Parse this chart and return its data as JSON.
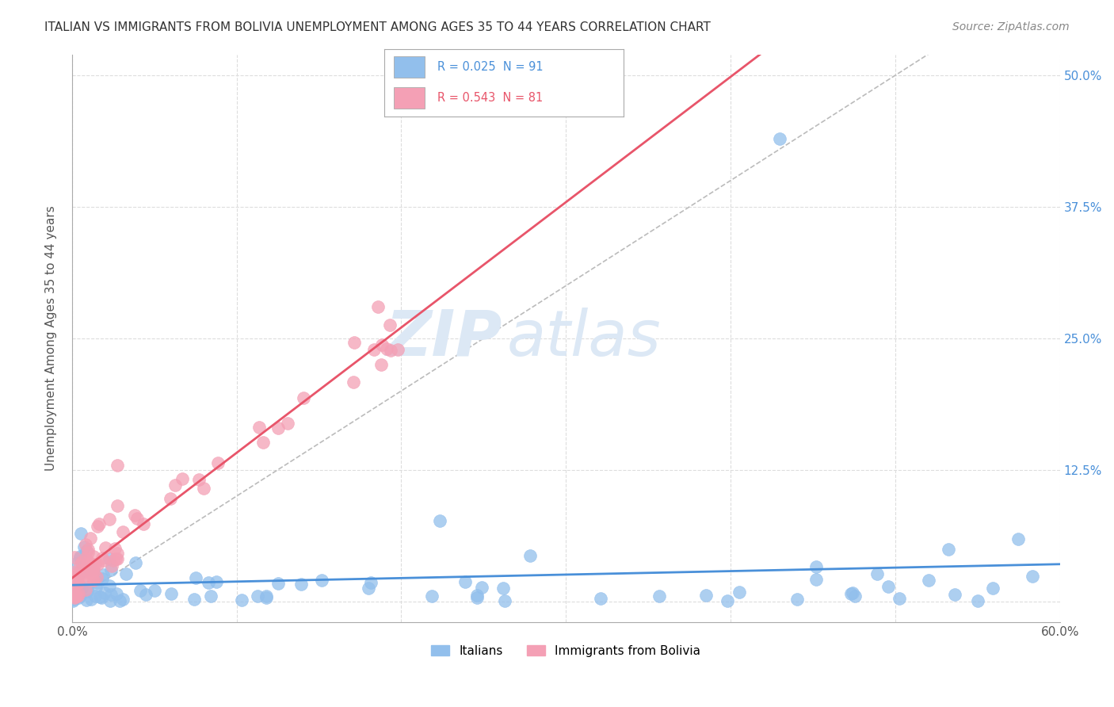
{
  "title": "ITALIAN VS IMMIGRANTS FROM BOLIVIA UNEMPLOYMENT AMONG AGES 35 TO 44 YEARS CORRELATION CHART",
  "source": "Source: ZipAtlas.com",
  "ylabel": "Unemployment Among Ages 35 to 44 years",
  "xlabel": "",
  "xlim": [
    0.0,
    0.6
  ],
  "ylim": [
    -0.02,
    0.52
  ],
  "xticks": [
    0.0,
    0.1,
    0.2,
    0.3,
    0.4,
    0.5,
    0.6
  ],
  "xticklabels": [
    "0.0%",
    "",
    "",
    "",
    "",
    "",
    "60.0%"
  ],
  "yticks": [
    0.0,
    0.125,
    0.25,
    0.375,
    0.5
  ],
  "yticklabels": [
    "",
    "12.5%",
    "25.0%",
    "37.5%",
    "50.0%"
  ],
  "italian_R": 0.025,
  "italian_N": 91,
  "bolivia_R": 0.543,
  "bolivia_N": 81,
  "italian_color": "#92BFEC",
  "bolivia_color": "#F4A0B5",
  "italian_line_color": "#4A90D9",
  "bolivia_line_color": "#E8556A",
  "legend_label_italian": "Italians",
  "legend_label_bolivia": "Immigrants from Bolivia",
  "watermark_zip": "ZIP",
  "watermark_atlas": "atlas",
  "background_color": "#FFFFFF",
  "grid_color": "#DDDDDD"
}
